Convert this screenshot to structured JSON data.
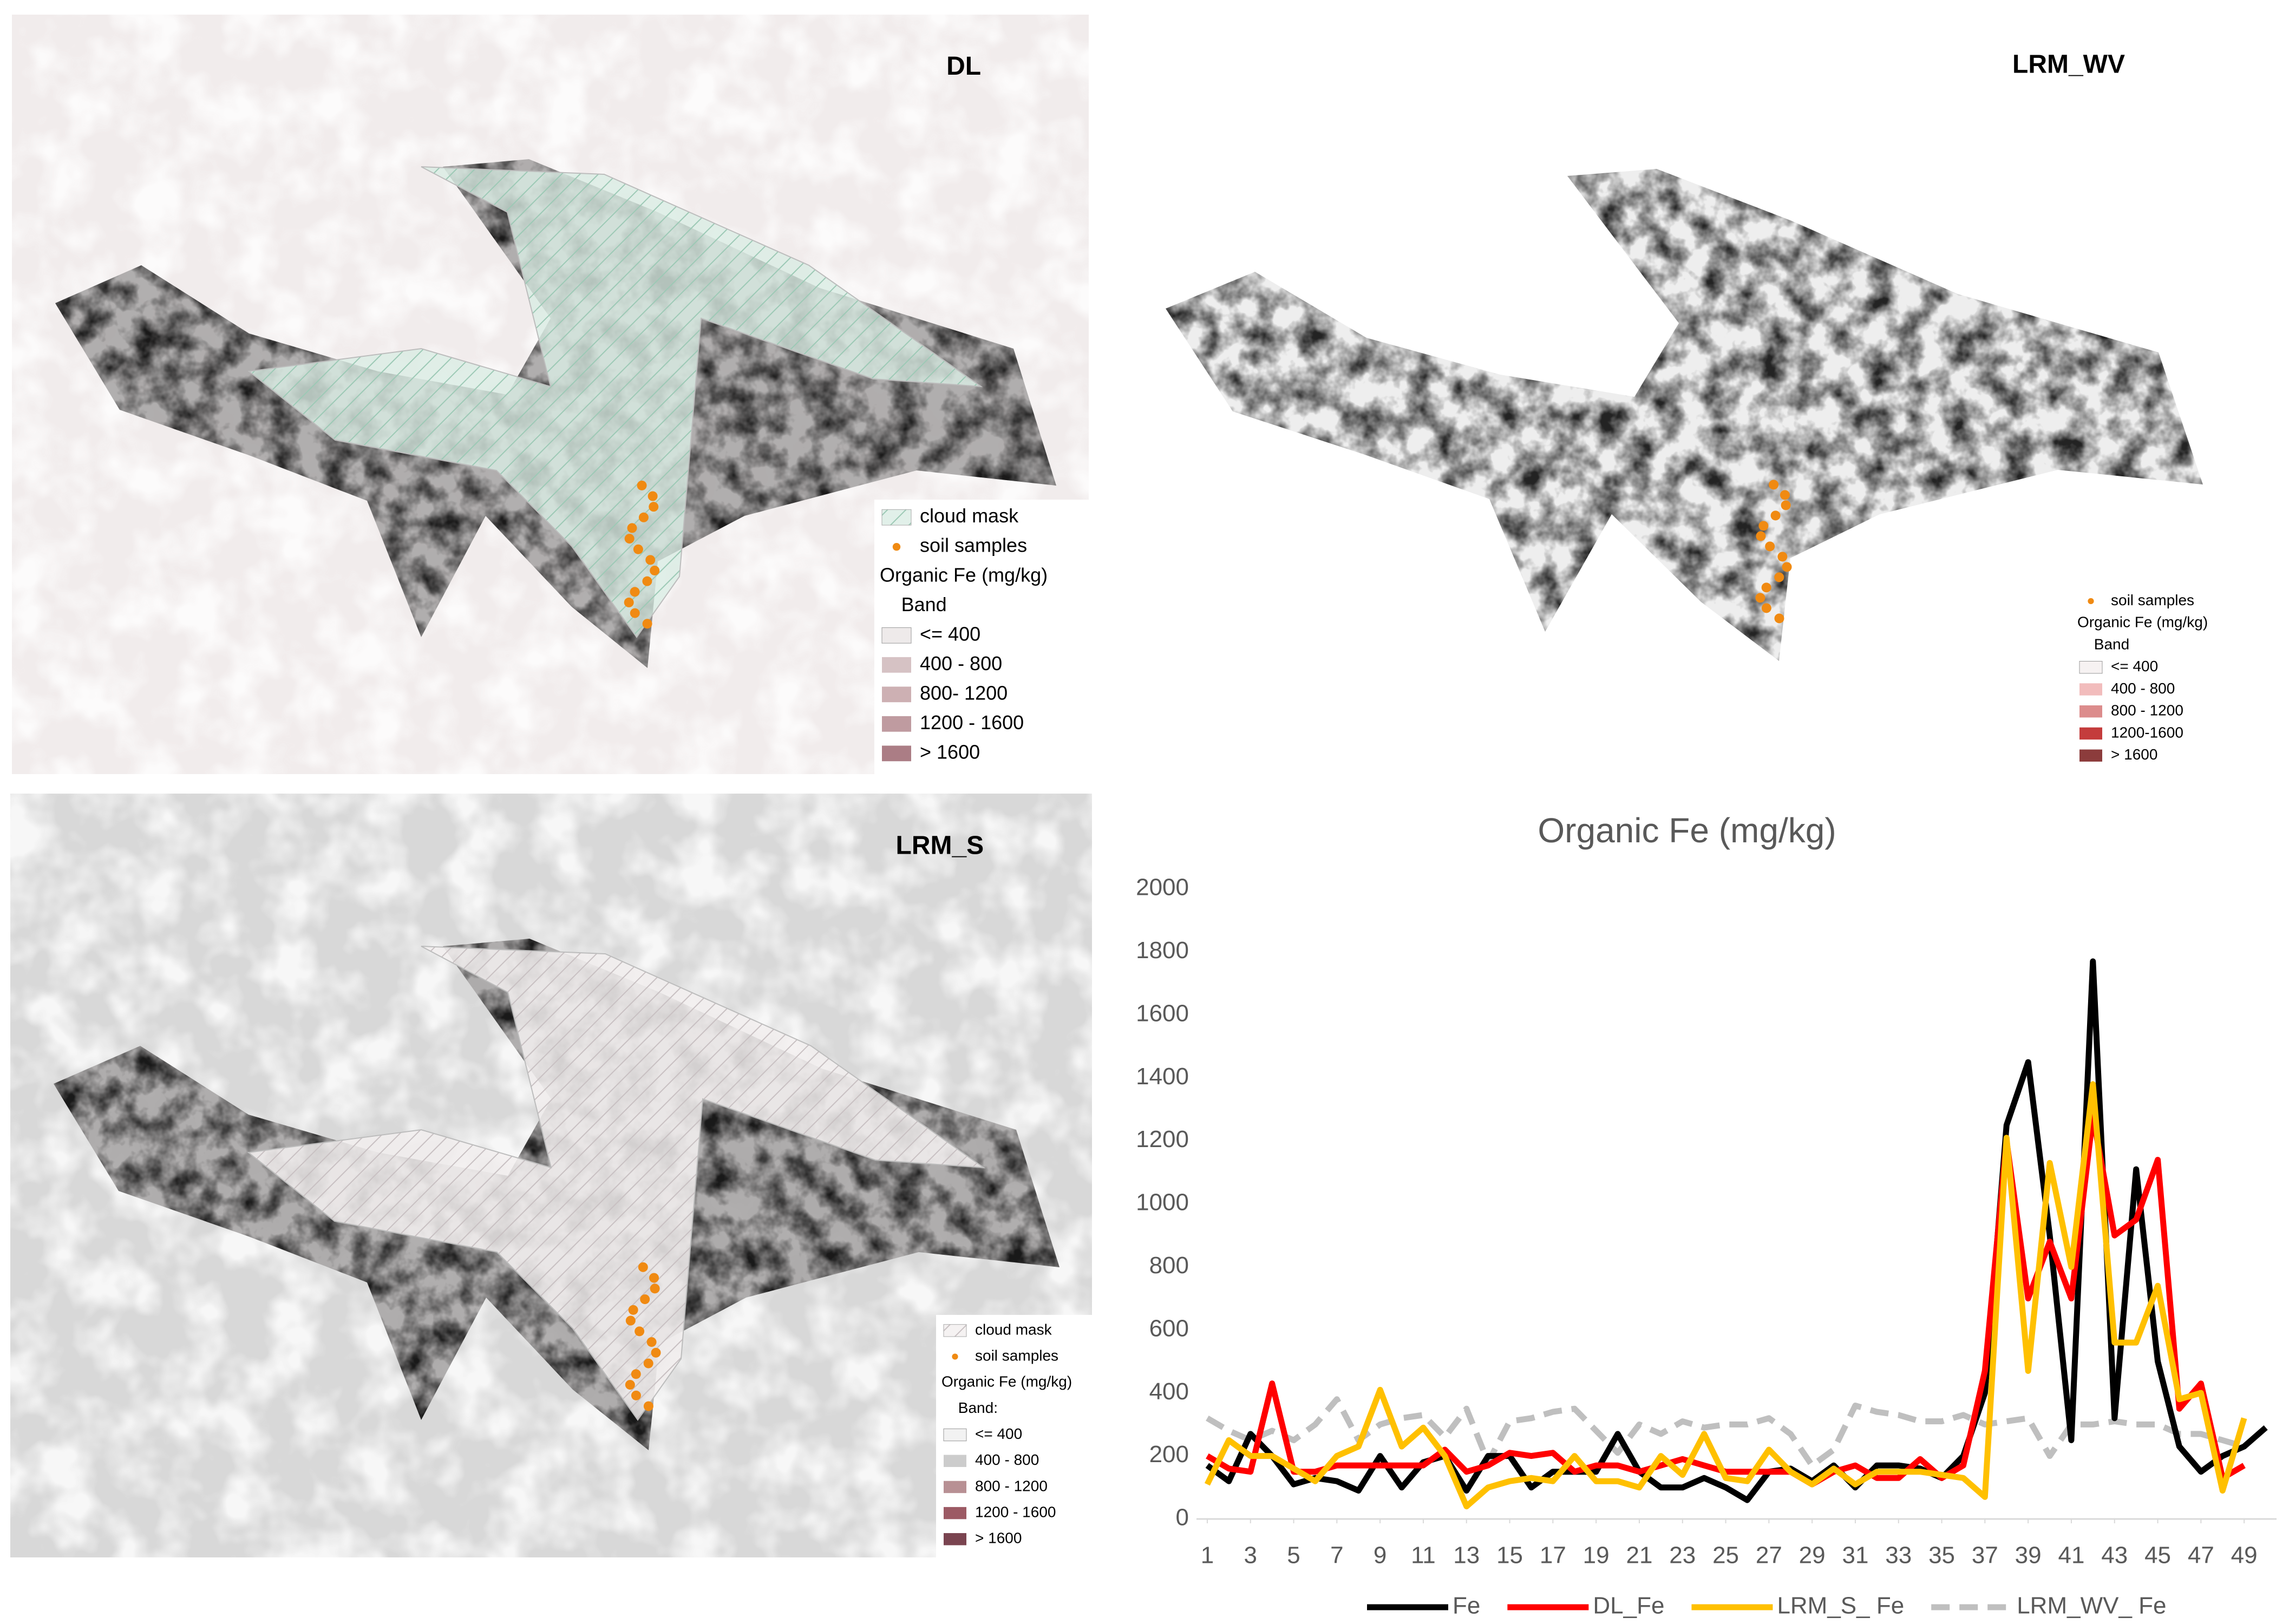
{
  "maps": [
    {
      "label": "DL",
      "background": "#f1ecec",
      "shade": "#b88a92",
      "legend": {
        "cloud_mask": "cloud mask",
        "soil_samples": "soil samples",
        "title": "Organic Fe (mg/kg)",
        "band": "Band",
        "classes": [
          {
            "label": "<= 400",
            "color": "#eeeaea"
          },
          {
            "label": "400 - 800",
            "color": "#d6c2c4"
          },
          {
            "label": "800- 1200",
            "color": "#cdb0b3"
          },
          {
            "label": "1200 - 1600",
            "color": "#bf9ba0"
          },
          {
            "label": "> 1600",
            "color": "#ab7d85"
          }
        ]
      }
    },
    {
      "label": "LRM_WV",
      "background": "#ffffff",
      "shade": "#c84a4a",
      "legend": {
        "soil_samples": "soil samples",
        "title": "Organic Fe (mg/kg)",
        "band": "Band",
        "classes": [
          {
            "label": "<= 400",
            "color": "#f6f2f2"
          },
          {
            "label": "400 - 800",
            "color": "#f2bcbc"
          },
          {
            "label": "800 - 1200",
            "color": "#dc8c8c"
          },
          {
            "label": "1200-1600",
            "color": "#c43c3c"
          },
          {
            "label": "> 1600",
            "color": "#8c3c3c"
          }
        ]
      }
    },
    {
      "label": "LRM_S",
      "background": "#d8d8d8",
      "shade": "#7a4450",
      "legend": {
        "cloud_mask": "cloud mask",
        "soil_samples": "soil samples",
        "title": "Organic Fe (mg/kg)",
        "band": "Band:",
        "classes": [
          {
            "label": "<= 400",
            "color": "#f2f2f2"
          },
          {
            "label": "400 - 800",
            "color": "#cccccc"
          },
          {
            "label": "800 - 1200",
            "color": "#b89094"
          },
          {
            "label": "1200 - 1600",
            "color": "#9c5a64"
          },
          {
            "label": "> 1600",
            "color": "#7a4450"
          }
        ]
      }
    }
  ],
  "chart_data": {
    "type": "line",
    "title": "Organic Fe (mg/kg)",
    "x": [
      1,
      2,
      3,
      4,
      5,
      6,
      7,
      8,
      9,
      10,
      11,
      12,
      13,
      14,
      15,
      16,
      17,
      18,
      19,
      20,
      21,
      22,
      23,
      24,
      25,
      26,
      27,
      28,
      29,
      30,
      31,
      32,
      33,
      34,
      35,
      36,
      37,
      38,
      39,
      40,
      41,
      42,
      43,
      44,
      45,
      46,
      47,
      48,
      49,
      50
    ],
    "xlim": [
      0.5,
      50.5
    ],
    "xticks": [
      1,
      3,
      5,
      7,
      9,
      11,
      13,
      15,
      17,
      19,
      21,
      23,
      25,
      27,
      29,
      31,
      33,
      35,
      37,
      39,
      41,
      43,
      45,
      47,
      49
    ],
    "ylim": [
      0,
      2000
    ],
    "yticks": [
      0,
      200,
      400,
      600,
      800,
      1000,
      1200,
      1400,
      1600,
      1800,
      2000
    ],
    "grid": false,
    "legend": "bottom",
    "series": [
      {
        "name": "Fe",
        "color": "#000000",
        "dash": false,
        "values": [
          170,
          120,
          270,
          200,
          110,
          130,
          120,
          90,
          200,
          100,
          180,
          200,
          90,
          200,
          200,
          100,
          150,
          150,
          150,
          270,
          150,
          100,
          100,
          130,
          100,
          60,
          150,
          160,
          120,
          170,
          100,
          170,
          170,
          160,
          130,
          200,
          400,
          1250,
          1450,
          900,
          250,
          1770,
          320,
          1110,
          500,
          230,
          150,
          200,
          230,
          290
        ]
      },
      {
        "name": "DL_Fe",
        "color": "#ff0000",
        "dash": false,
        "values": [
          200,
          160,
          150,
          430,
          150,
          150,
          170,
          170,
          170,
          170,
          170,
          220,
          150,
          170,
          210,
          200,
          210,
          150,
          170,
          170,
          150,
          170,
          190,
          170,
          150,
          150,
          150,
          150,
          110,
          150,
          170,
          130,
          130,
          190,
          130,
          170,
          470,
          1200,
          700,
          880,
          700,
          1280,
          900,
          950,
          1140,
          350,
          430,
          130,
          170,
          null
        ]
      },
      {
        "name": "LRM_S_ Fe",
        "color": "#ffc000",
        "dash": false,
        "values": [
          110,
          250,
          200,
          200,
          160,
          120,
          200,
          230,
          410,
          230,
          290,
          200,
          40,
          100,
          120,
          130,
          120,
          200,
          120,
          120,
          100,
          200,
          140,
          270,
          130,
          120,
          220,
          150,
          110,
          160,
          110,
          150,
          150,
          150,
          140,
          130,
          70,
          1210,
          470,
          1130,
          800,
          1380,
          560,
          560,
          740,
          380,
          400,
          90,
          320,
          null
        ]
      },
      {
        "name": "LRM_WV_ Fe",
        "color": "#bfbfbf",
        "dash": true,
        "values": [
          320,
          280,
          250,
          280,
          250,
          300,
          380,
          250,
          300,
          320,
          330,
          260,
          350,
          180,
          310,
          320,
          340,
          350,
          280,
          210,
          300,
          270,
          310,
          290,
          300,
          300,
          320,
          270,
          170,
          220,
          360,
          340,
          330,
          310,
          310,
          330,
          300,
          310,
          320,
          200,
          300,
          300,
          310,
          300,
          300,
          270,
          270,
          250,
          230,
          null
        ]
      }
    ]
  }
}
